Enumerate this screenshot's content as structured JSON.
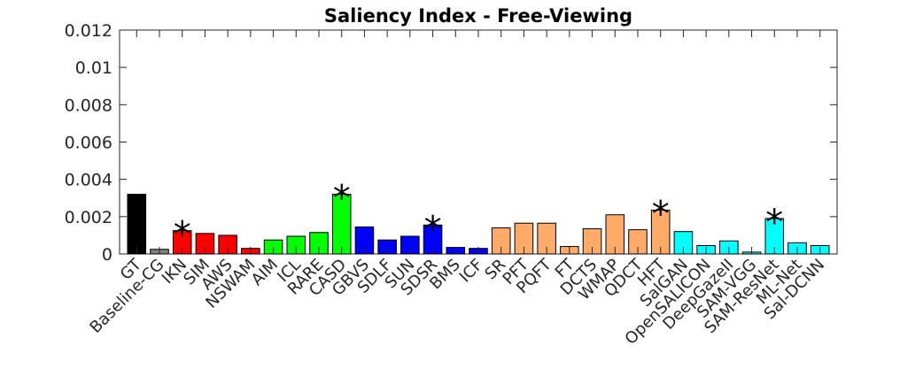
{
  "chart_data": {
    "type": "bar",
    "title": "Saliency Index - Free-Viewing",
    "xlabel": "",
    "ylabel": "",
    "ylim": [
      0,
      0.012
    ],
    "yticks": [
      0,
      0.002,
      0.004,
      0.006,
      0.008,
      0.01,
      0.012
    ],
    "ytick_labels": [
      "0",
      "0.002",
      "0.004",
      "0.006",
      "0.008",
      "0.01",
      "0.012"
    ],
    "grid": false,
    "significance_marker": "*",
    "categories": [
      "GT",
      "Baseline-CG",
      "IKN",
      "SIM",
      "AWS",
      "NSWAM",
      "AIM",
      "ICL",
      "RARE",
      "CASD",
      "GBVS",
      "SDLF",
      "SUN",
      "SDSR",
      "BMS",
      "ICF",
      "SR",
      "PFT",
      "PQFT",
      "FT",
      "DCTS",
      "WMAP",
      "QDCT",
      "HFT",
      "SalGAN",
      "OpenSALICON",
      "DeepGazeII",
      "SAM-VGG",
      "SAM-ResNet",
      "ML-Net",
      "Sal-DCNN"
    ],
    "values": [
      0.0032,
      0.00025,
      0.00125,
      0.0011,
      0.001,
      0.0003,
      0.00075,
      0.00095,
      0.00115,
      0.0032,
      0.00145,
      0.00075,
      0.00095,
      0.00155,
      0.00035,
      0.0003,
      0.0014,
      0.00165,
      0.00165,
      0.0004,
      0.00135,
      0.0021,
      0.0013,
      0.00235,
      0.0012,
      0.00045,
      0.0007,
      0.0001,
      0.0019,
      0.0006,
      0.00045
    ],
    "colors": [
      "#000000",
      "#808080",
      "#ff0000",
      "#ff0000",
      "#ff0000",
      "#ff0000",
      "#00ff00",
      "#00ff00",
      "#00ff00",
      "#00ff00",
      "#0000ff",
      "#0000ff",
      "#0000ff",
      "#0000ff",
      "#0000ff",
      "#0000ff",
      "#ffaa66",
      "#ffaa66",
      "#ffaa66",
      "#ffaa66",
      "#ffaa66",
      "#ffaa66",
      "#ffaa66",
      "#ffaa66",
      "#00ffff",
      "#00ffff",
      "#00ffff",
      "#00ffff",
      "#00ffff",
      "#00ffff",
      "#00ffff"
    ],
    "significant": [
      false,
      false,
      true,
      false,
      false,
      false,
      false,
      false,
      false,
      true,
      false,
      false,
      false,
      true,
      false,
      false,
      false,
      false,
      false,
      false,
      false,
      false,
      false,
      true,
      false,
      false,
      false,
      false,
      true,
      false,
      false
    ]
  }
}
